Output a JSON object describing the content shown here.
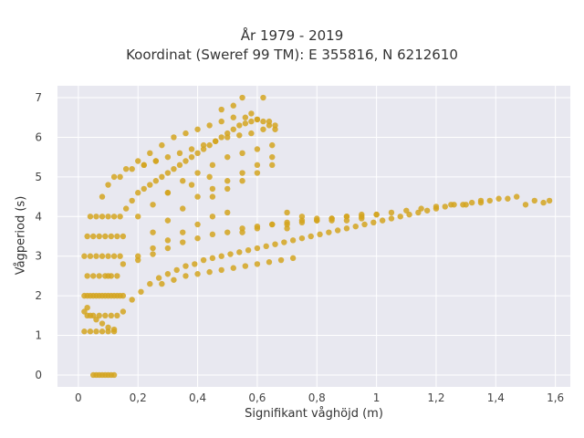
{
  "chart_data": {
    "type": "scatter",
    "title": "År 1979 - 2019",
    "subtitle": "Koordinat (Sweref 99 TM): E 355816, N 6212610",
    "xlabel": "Signifikant våghöjd (m)",
    "ylabel": "Vågperiod (s)",
    "xlim": [
      -0.07,
      1.65
    ],
    "ylim": [
      -0.3,
      7.3
    ],
    "xticks": [
      0,
      0.2,
      0.4,
      0.6,
      0.8,
      1,
      1.2,
      1.4,
      1.6
    ],
    "xtick_labels": [
      "0",
      "0,2",
      "0,4",
      "0,6",
      "0,8",
      "1",
      "1,2",
      "1,4",
      "1,6"
    ],
    "yticks": [
      0,
      1,
      2,
      3,
      4,
      5,
      6,
      7
    ],
    "ytick_labels": [
      "0",
      "1",
      "2",
      "3",
      "4",
      "5",
      "6",
      "7"
    ],
    "grid": true,
    "marker_color": "#D4A520",
    "background_color": "#E8E8F0",
    "series": [
      {
        "x": [
          0.02,
          0.04,
          0.06,
          0.08,
          0.1,
          0.12,
          0.03,
          0.05,
          0.07,
          0.09,
          0.11,
          0.13,
          0.02,
          0.03,
          0.04,
          0.05,
          0.06,
          0.07,
          0.08,
          0.09,
          0.1,
          0.11,
          0.12,
          0.13,
          0.14,
          0.15,
          0.03,
          0.05,
          0.07,
          0.09,
          0.11,
          0.13,
          0.02,
          0.04,
          0.06,
          0.08,
          0.1,
          0.12,
          0.14,
          0.03,
          0.05,
          0.07,
          0.09,
          0.11,
          0.13,
          0.15,
          0.04,
          0.06,
          0.08,
          0.1,
          0.12,
          0.14,
          0.16,
          0.18,
          0.2,
          0.22,
          0.24,
          0.26,
          0.28,
          0.3,
          0.32,
          0.34,
          0.36,
          0.38,
          0.4,
          0.42,
          0.44,
          0.46,
          0.48,
          0.5,
          0.52,
          0.54,
          0.56,
          0.58,
          0.6,
          0.62,
          0.64,
          0.66,
          0.15,
          0.18,
          0.21,
          0.24,
          0.27,
          0.3,
          0.33,
          0.36,
          0.39,
          0.42,
          0.45,
          0.48,
          0.51,
          0.54,
          0.57,
          0.6,
          0.63,
          0.66,
          0.69,
          0.72,
          0.75,
          0.78,
          0.81,
          0.84,
          0.87,
          0.9,
          0.93,
          0.96,
          0.99,
          1.02,
          1.05,
          1.08,
          1.11,
          1.14,
          1.17,
          1.2,
          1.23,
          1.26,
          1.29,
          1.32,
          1.35,
          1.38,
          1.41,
          1.44,
          1.47,
          1.5,
          1.53,
          1.56,
          1.58,
          0.2,
          0.25,
          0.3,
          0.35,
          0.4,
          0.45,
          0.5,
          0.55,
          0.6,
          0.65,
          0.7,
          0.75,
          0.8,
          0.85,
          0.9,
          0.95,
          1.0,
          1.05,
          1.1,
          1.15,
          1.2,
          1.25,
          1.3,
          1.35,
          0.1,
          0.15,
          0.2,
          0.25,
          0.3,
          0.35,
          0.4,
          0.45,
          0.5,
          0.55,
          0.6,
          0.65,
          0.7,
          0.75,
          0.8,
          0.85,
          0.9,
          0.95,
          1.0,
          0.2,
          0.25,
          0.3,
          0.35,
          0.4,
          0.45,
          0.5,
          0.55,
          0.6,
          0.65,
          0.7,
          0.75,
          0.8,
          0.85,
          0.9,
          0.95,
          0.12,
          0.16,
          0.2,
          0.24,
          0.28,
          0.32,
          0.36,
          0.4,
          0.44,
          0.48,
          0.52,
          0.56,
          0.6,
          0.64,
          0.25,
          0.3,
          0.35,
          0.4,
          0.45,
          0.5,
          0.55,
          0.6,
          0.65,
          0.08,
          0.1,
          0.14,
          0.18,
          0.22,
          0.26,
          0.3,
          0.34,
          0.38,
          0.42,
          0.46,
          0.5,
          0.54,
          0.58,
          0.62,
          0.66,
          0.28,
          0.32,
          0.36,
          0.4,
          0.44,
          0.48,
          0.52,
          0.56,
          0.6,
          0.64,
          0.68,
          0.72,
          0.45,
          0.5,
          0.55,
          0.6,
          0.65,
          0.55,
          0.62,
          0.48,
          0.52,
          0.58,
          0.7,
          0.3,
          0.38,
          0.44,
          0.22,
          0.26,
          0.06,
          0.08,
          0.1,
          0.12,
          0.05,
          0.07,
          0.09,
          0.11,
          0.04,
          0.06,
          0.08,
          0.1,
          0.12,
          0.02,
          0.03
        ],
        "y": [
          1.1,
          1.1,
          1.1,
          1.1,
          1.1,
          1.15,
          1.5,
          1.5,
          1.5,
          1.5,
          1.5,
          1.5,
          2.0,
          2.0,
          2.0,
          2.0,
          2.0,
          2.0,
          2.0,
          2.0,
          2.0,
          2.0,
          2.0,
          2.0,
          2.0,
          2.0,
          2.5,
          2.5,
          2.5,
          2.5,
          2.5,
          2.5,
          3.0,
          3.0,
          3.0,
          3.0,
          3.0,
          3.0,
          3.0,
          3.5,
          3.5,
          3.5,
          3.5,
          3.5,
          3.5,
          3.5,
          4.0,
          4.0,
          4.0,
          4.0,
          4.0,
          4.0,
          4.2,
          4.4,
          4.6,
          4.7,
          4.8,
          4.9,
          5.0,
          5.1,
          5.2,
          5.3,
          5.4,
          5.5,
          5.6,
          5.7,
          5.8,
          5.9,
          6.0,
          6.1,
          6.2,
          6.3,
          6.35,
          6.4,
          6.45,
          6.4,
          6.3,
          6.2,
          1.6,
          1.9,
          2.1,
          2.3,
          2.45,
          2.55,
          2.65,
          2.75,
          2.8,
          2.9,
          2.95,
          3.0,
          3.05,
          3.1,
          3.15,
          3.2,
          3.25,
          3.3,
          3.35,
          3.4,
          3.45,
          3.5,
          3.55,
          3.6,
          3.65,
          3.7,
          3.75,
          3.8,
          3.85,
          3.9,
          3.95,
          4.0,
          4.05,
          4.1,
          4.15,
          4.2,
          4.25,
          4.3,
          4.3,
          4.35,
          4.4,
          4.4,
          4.45,
          4.45,
          4.5,
          4.3,
          4.4,
          4.35,
          4.4,
          2.9,
          3.05,
          3.2,
          3.35,
          3.45,
          3.55,
          3.6,
          3.7,
          3.75,
          3.8,
          3.85,
          3.9,
          3.9,
          3.95,
          4.0,
          4.05,
          4.05,
          4.1,
          4.15,
          4.2,
          4.25,
          4.3,
          4.3,
          4.35,
          2.5,
          2.8,
          3.0,
          3.2,
          3.4,
          3.6,
          3.8,
          4.0,
          4.1,
          3.6,
          3.7,
          3.8,
          3.8,
          3.85,
          3.9,
          3.95,
          4.0,
          4.0,
          4.05,
          4.0,
          4.3,
          4.6,
          4.9,
          5.1,
          5.3,
          5.5,
          5.6,
          5.7,
          5.8,
          4.1,
          4.0,
          3.95,
          3.9,
          3.9,
          3.95,
          5.0,
          5.2,
          5.4,
          5.6,
          5.8,
          6.0,
          6.1,
          6.2,
          6.3,
          6.4,
          6.5,
          6.5,
          6.45,
          6.4,
          3.6,
          3.9,
          4.2,
          4.5,
          4.7,
          4.9,
          5.1,
          5.3,
          5.5,
          4.5,
          4.8,
          5.0,
          5.2,
          5.3,
          5.4,
          5.5,
          5.6,
          5.7,
          5.8,
          5.9,
          6.0,
          6.05,
          6.1,
          6.2,
          6.3,
          2.3,
          2.4,
          2.5,
          2.55,
          2.6,
          2.65,
          2.7,
          2.75,
          2.8,
          2.85,
          2.9,
          2.95,
          4.5,
          4.7,
          4.9,
          5.1,
          5.3,
          7.0,
          7.0,
          6.7,
          6.8,
          6.6,
          3.7,
          4.6,
          4.8,
          5.0,
          5.3,
          5.4,
          0.0,
          0.0,
          0.0,
          0.0,
          0.0,
          0.0,
          0.0,
          0.0,
          1.5,
          1.4,
          1.3,
          1.2,
          1.1,
          1.6,
          1.7
        ]
      }
    ]
  }
}
